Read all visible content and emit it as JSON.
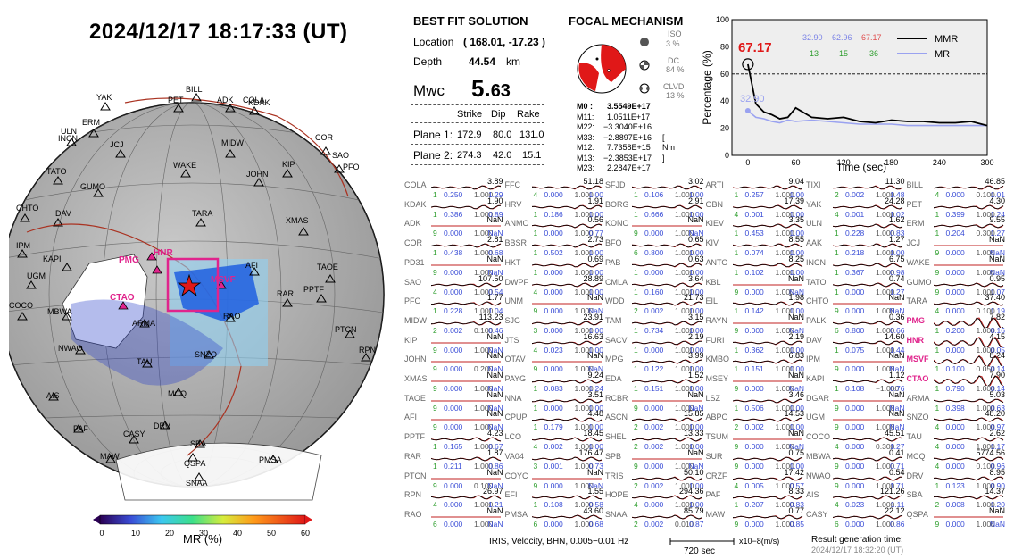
{
  "title": "2024/12/17  18:17:33 (UT)",
  "best_fit": {
    "heading": "BEST FIT SOLUTION",
    "location_label": "Location",
    "location_value": "( 168.01,  -17.23 )",
    "depth_label": "Depth",
    "depth_value": "44.54",
    "depth_unit": "km",
    "mw_label": "Mwc",
    "mw_value_big": "5.",
    "mw_value_small": "63",
    "col_strike": "Strike",
    "col_dip": "Dip",
    "col_rake": "Rake",
    "plane1_label": "Plane 1:",
    "plane1": [
      "172.9",
      "80.0",
      "131.0"
    ],
    "plane2_label": "Plane 2:",
    "plane2": [
      "274.3",
      "42.0",
      "15.1"
    ]
  },
  "focal": {
    "heading": "FOCAL MECHANISM",
    "iso_label": "ISO",
    "iso_value": "3 %",
    "dc_label": "DC",
    "dc_value": "84 %",
    "clvd_label": "CLVD",
    "clvd_value": "13 %",
    "moment_rows": [
      {
        "k": "M0  :",
        "v": "3.5549E+17"
      },
      {
        "k": "M11:",
        "v": "1.0511E+17"
      },
      {
        "k": "M22:",
        "v": "−3.3040E+16"
      },
      {
        "k": "M33:",
        "v": "−2.8897E+16"
      },
      {
        "k": "M12:",
        "v": "7.7358E+15"
      },
      {
        "k": "M13:",
        "v": "−2.3853E+17"
      },
      {
        "k": "M23:",
        "v": "2.2847E+17"
      }
    ],
    "unit": "[ Nm ]"
  },
  "mr_chart": {
    "ylabel": "Percentage (%)",
    "xlabel": "Time (sec)",
    "yticks": [
      "0",
      "20",
      "40",
      "60",
      "80",
      "100"
    ],
    "xticks": [
      "0",
      "60",
      "120",
      "180",
      "240",
      "300"
    ],
    "big_value": "67.17",
    "blue_marker": "32.90",
    "top_vals": [
      "32.90",
      "62.96",
      "67.17"
    ],
    "bottom_vals": [
      "13",
      "15",
      "36"
    ],
    "legend": [
      "MMR",
      "MR"
    ]
  },
  "chart_data": {
    "type": "line",
    "x": [
      0,
      10,
      20,
      30,
      40,
      50,
      60,
      80,
      100,
      120,
      140,
      160,
      180,
      200,
      220,
      240,
      260,
      280,
      300
    ],
    "series": [
      {
        "name": "MMR",
        "values": [
          67.17,
          38,
          32,
          30,
          27,
          28,
          35,
          28,
          27,
          28,
          25,
          24,
          26,
          25,
          25,
          24,
          24,
          25,
          22
        ]
      },
      {
        "name": "MR",
        "values": [
          32.9,
          28,
          27,
          25,
          24,
          26,
          25,
          26,
          25,
          24,
          23,
          23,
          23,
          22,
          22,
          22,
          22,
          22,
          22
        ]
      }
    ],
    "xlabel": "Time (sec)",
    "ylabel": "Percentage (%)",
    "xlim": [
      -20,
      300
    ],
    "ylim": [
      0,
      100
    ]
  },
  "colorbar": {
    "ticks": [
      "0",
      "10",
      "20",
      "30",
      "40",
      "50",
      "60"
    ],
    "label": "MR (%)"
  },
  "globe_labels": {
    "stations": [
      "YAK",
      "BILL",
      "PET",
      "ADK",
      "COLA",
      "KDAK",
      "ULN",
      "INCN",
      "ERM",
      "JCJ",
      "MIDW",
      "COR",
      "SAO",
      "PFO",
      "TATO",
      "WAKE",
      "JOHN",
      "KIP",
      "GUMO",
      "CHTO",
      "DAV",
      "TARA",
      "XMAS",
      "IPM",
      "KAPI",
      "UGM",
      "AFI",
      "TAOE",
      "PPTF",
      "RAR",
      "COCO",
      "MBWA",
      "ARMA",
      "RAO",
      "PTCN",
      "NWAO",
      "TAU",
      "SNZO",
      "RPN",
      "AIS",
      "MCQ",
      "PAF",
      "CASY",
      "DRV",
      "SBA",
      "MAW",
      "QSPA",
      "PMSA",
      "SNAA"
    ],
    "pink": [
      "PMG",
      "HNR",
      "CTAO",
      "MSVF"
    ]
  },
  "footer": {
    "source": "IRIS, Velocity,  BHN, 0.005−0.01 Hz",
    "scale_time": "720 sec",
    "scale_unit": "x10−8(m/s)",
    "result_label": "Result generation time:",
    "result_time": "2024/12/17 18:32:20 (UT)"
  },
  "waveforms": [
    [
      "COLA",
      "3.89",
      "1",
      "0.250",
      "1.000",
      "1.29"
    ],
    [
      "FFC",
      "51.18",
      "4",
      "0.000",
      "1.000",
      "1.00"
    ],
    [
      "SFJD",
      "3.02",
      "1",
      "0.106",
      "1.000",
      "1.00"
    ],
    [
      "ARTI",
      "9.04",
      "1",
      "0.257",
      "1.000",
      "1.00"
    ],
    [
      "TIXI",
      "11.30",
      "2",
      "0.002",
      "1.000",
      "1.48"
    ],
    [
      "BILL",
      "46.85",
      "4",
      "0.000",
      "0.100",
      "1.01"
    ],
    [
      "KDAK",
      "1.90",
      "1",
      "0.386",
      "1.000",
      "0.89"
    ],
    [
      "HRV",
      "1.91",
      "1",
      "0.186",
      "1.000",
      "1.00"
    ],
    [
      "BORG",
      "2.91",
      "1",
      "0.666",
      "1.000",
      "1.00"
    ],
    [
      "OBN",
      "17.39",
      "4",
      "0.001",
      "1.000",
      "1.00"
    ],
    [
      "YAK",
      "24.28",
      "4",
      "0.001",
      "1.000",
      "1.02"
    ],
    [
      "PET",
      "4.30",
      "1",
      "0.399",
      "1.000",
      "1.24"
    ],
    [
      "ADK",
      "NaN",
      "9",
      "0.000",
      "1.000",
      "NaN"
    ],
    [
      "ANMO",
      "0.56",
      "1",
      "0.000",
      "1.000",
      "0.77"
    ],
    [
      "KONO",
      "NaN",
      "9",
      "0.000",
      "1.000",
      "NaN"
    ],
    [
      "KIEV",
      "3.35",
      "1",
      "0.453",
      "1.000",
      "1.00"
    ],
    [
      "ULN",
      "1.62",
      "1",
      "0.228",
      "1.000",
      "0.83"
    ],
    [
      "ERM",
      "9.55",
      "1",
      "0.204",
      "0.300",
      "1.27"
    ],
    [
      "COR",
      "2.81",
      "1",
      "0.438",
      "1.000",
      "0.68"
    ],
    [
      "BBSR",
      "2.73",
      "1",
      "0.502",
      "1.000",
      "1.00"
    ],
    [
      "BFO",
      "0.65",
      "6",
      "0.800",
      "1.000",
      "1.00"
    ],
    [
      "KIV",
      "8.55",
      "1",
      "0.074",
      "1.000",
      "1.00"
    ],
    [
      "AAK",
      "1.27",
      "1",
      "0.218",
      "1.000",
      "1.00"
    ],
    [
      "JCJ",
      "NaN",
      "9",
      "0.000",
      "1.000",
      "NaN"
    ],
    [
      "PD31",
      "NaN",
      "9",
      "0.000",
      "1.000",
      "NaN"
    ],
    [
      "HKT",
      "0.69",
      "1",
      "0.000",
      "1.000",
      "1.00"
    ],
    [
      "PAB",
      "0.63",
      "1",
      "0.000",
      "1.000",
      "1.00"
    ],
    [
      "ANTO",
      "8.25",
      "1",
      "0.102",
      "1.000",
      "1.00"
    ],
    [
      "INCN",
      "6.75",
      "1",
      "0.367",
      "1.000",
      "0.98"
    ],
    [
      "WAKE",
      "NaN",
      "9",
      "0.000",
      "1.000",
      "NaN"
    ],
    [
      "SAO",
      "107.50",
      "4",
      "0.000",
      "1.000",
      "0.54"
    ],
    [
      "DWPF",
      "28.89",
      "4",
      "0.000",
      "1.000",
      "1.00"
    ],
    [
      "CMLA",
      "3.64",
      "1",
      "0.160",
      "1.000",
      "1.00"
    ],
    [
      "KBL",
      "NaN",
      "9",
      "0.000",
      "1.000",
      "NaN"
    ],
    [
      "TATO",
      "0.74",
      "1",
      "0.000",
      "1.000",
      "1.27"
    ],
    [
      "GUMO",
      "0.95",
      "9",
      "0.000",
      "1.000",
      "1.07"
    ],
    [
      "PFO",
      "1.77",
      "1",
      "0.228",
      "1.000",
      "1.04"
    ],
    [
      "UNM",
      "NaN",
      "9",
      "0.000",
      "1.000",
      "NaN"
    ],
    [
      "WDD",
      "21.73",
      "2",
      "0.002",
      "1.000",
      "1.00"
    ],
    [
      "EIL",
      "1.98",
      "1",
      "0.142",
      "1.000",
      "1.00"
    ],
    [
      "CHTO",
      "NaN",
      "9",
      "0.000",
      "1.000",
      "NaN"
    ],
    [
      "TARA",
      "37.40",
      "4",
      "0.000",
      "0.100",
      "1.19"
    ],
    [
      "MIDW",
      "113.23",
      "2",
      "0.002",
      "0.100",
      "0.46"
    ],
    [
      "SJG",
      "23.91",
      "3",
      "0.000",
      "1.000",
      "1.00"
    ],
    [
      "TAM",
      "3.15",
      "1",
      "0.734",
      "1.000",
      "1.00"
    ],
    [
      "RAYN",
      "NaN",
      "9",
      "0.000",
      "1.000",
      "NaN"
    ],
    [
      "PALK",
      "0.36",
      "6",
      "0.800",
      "1.000",
      "0.66"
    ],
    [
      "PMG",
      "7.82",
      "1",
      "0.200",
      "1.000",
      "0.16"
    ],
    [
      "KIP",
      "NaN",
      "9",
      "0.000",
      "1.000",
      "NaN"
    ],
    [
      "JTS",
      "16.63",
      "4",
      "0.023",
      "1.000",
      "1.00"
    ],
    [
      "SACV",
      "2.19",
      "1",
      "0.000",
      "1.000",
      "1.00"
    ],
    [
      "FURI",
      "2.19",
      "1",
      "0.362",
      "1.000",
      "1.00"
    ],
    [
      "DAV",
      "14.60",
      "1",
      "0.075",
      "1.000",
      "1.44"
    ],
    [
      "HNR",
      "4.15",
      "1",
      "0.000",
      "1.000",
      "0.05"
    ],
    [
      "JOHN",
      "NaN",
      "9",
      "0.000",
      "0.200",
      "NaN"
    ],
    [
      "OTAV",
      "NaN",
      "9",
      "0.000",
      "1.000",
      "NaN"
    ],
    [
      "MPG",
      "3.99",
      "1",
      "0.122",
      "1.000",
      "1.00"
    ],
    [
      "KMBO",
      "6.83",
      "1",
      "0.151",
      "1.000",
      "1.00"
    ],
    [
      "IPM",
      "NaN",
      "9",
      "0.000",
      "1.000",
      "NaN"
    ],
    [
      "MSVF",
      "8.24",
      "1",
      "0.100",
      "0.050",
      "0.14"
    ],
    [
      "XMAS",
      "NaN",
      "9",
      "0.000",
      "1.000",
      "NaN"
    ],
    [
      "PAYG",
      "9.24",
      "1",
      "0.083",
      "1.000",
      "1.24"
    ],
    [
      "EDA",
      "1.52",
      "1",
      "0.151",
      "1.000",
      "1.00"
    ],
    [
      "MSEY",
      "NaN",
      "9",
      "0.000",
      "1.000",
      "NaN"
    ],
    [
      "KAPI",
      "1.12",
      "1",
      "0.108",
      "−1.000",
      "0.76"
    ],
    [
      "CTAO",
      "7.90",
      "1",
      "0.790",
      "1.000",
      "0.14"
    ],
    [
      "TAOE",
      "NaN",
      "9",
      "0.000",
      "1.000",
      "NaN"
    ],
    [
      "NNA",
      "3.51",
      "1",
      "0.000",
      "1.000",
      "1.00"
    ],
    [
      "RCBR",
      "NaN",
      "9",
      "0.000",
      "1.000",
      "NaN"
    ],
    [
      "LSZ",
      "3.46",
      "1",
      "0.506",
      "1.000",
      "1.00"
    ],
    [
      "DGAR",
      "NaN",
      "9",
      "0.000",
      "1.000",
      "NaN"
    ],
    [
      "ARMA",
      "5.03",
      "1",
      "0.398",
      "1.000",
      "0.63"
    ],
    [
      "AFI",
      "NaN",
      "9",
      "0.000",
      "1.000",
      "NaN"
    ],
    [
      "CPUP",
      "4.48",
      "1",
      "0.179",
      "1.000",
      "1.00"
    ],
    [
      "ASCN",
      "15.85",
      "2",
      "0.002",
      "1.000",
      "1.00"
    ],
    [
      "ABPO",
      "14.53",
      "2",
      "0.002",
      "1.000",
      "1.00"
    ],
    [
      "UGM",
      "NaN",
      "9",
      "0.000",
      "1.000",
      "NaN"
    ],
    [
      "SNZO",
      "48.20",
      "4",
      "0.000",
      "1.000",
      "0.97"
    ],
    [
      "PPTF",
      "4.23",
      "1",
      "0.165",
      "1.000",
      "0.67"
    ],
    [
      "LCO",
      "18.45",
      "4",
      "0.002",
      "1.000",
      "1.00"
    ],
    [
      "SHEL",
      "13.33",
      "2",
      "0.002",
      "1.000",
      "1.00"
    ],
    [
      "TSUM",
      "NaN",
      "9",
      "0.000",
      "1.000",
      "NaN"
    ],
    [
      "COCO",
      "45.51",
      "4",
      "0.000",
      "0.300",
      "1.27"
    ],
    [
      "TAU",
      "2.62",
      "4",
      "0.000",
      "1.000",
      "1.17"
    ],
    [
      "RAR",
      "1.87",
      "1",
      "0.211",
      "1.000",
      "0.86"
    ],
    [
      "VA04",
      "176.47",
      "3",
      "0.001",
      "1.000",
      "0.73"
    ],
    [
      "SPB",
      "NaN",
      "9",
      "0.000",
      "1.000",
      "NaN"
    ],
    [
      "SUR",
      "0.75",
      "9",
      "0.000",
      "1.000",
      "1.00"
    ],
    [
      "MBWA",
      "0.41",
      "9",
      "0.000",
      "1.000",
      "0.71"
    ],
    [
      "MCQ",
      "5774.56",
      "4",
      "0.000",
      "0.100",
      "0.96"
    ],
    [
      "PTCN",
      "NaN",
      "9",
      "0.000",
      "0.100",
      "NaN"
    ],
    [
      "COYC",
      "NaN",
      "9",
      "0.000",
      "1.000",
      "NaN"
    ],
    [
      "TRIS",
      "50.10",
      "2",
      "0.002",
      "1.000",
      "1.00"
    ],
    [
      "CRZF",
      "17.42",
      "4",
      "0.005",
      "1.000",
      "0.57"
    ],
    [
      "NWAO",
      "0.54",
      "9",
      "0.000",
      "1.000",
      "1.71"
    ],
    [
      "DRV",
      "8.95",
      "1",
      "0.123",
      "1.000",
      "0.90"
    ],
    [
      "RPN",
      "26.97",
      "4",
      "0.000",
      "1.000",
      "1.21"
    ],
    [
      "EFI",
      "1.55",
      "1",
      "0.108",
      "1.000",
      "0.58"
    ],
    [
      "HOPE",
      "294.36",
      "4",
      "0.000",
      "1.000",
      "1.00"
    ],
    [
      "PAF",
      "8.33",
      "1",
      "0.207",
      "1.000",
      "0.83"
    ],
    [
      "AIS",
      "121.26",
      "4",
      "0.023",
      "1.000",
      "1.11"
    ],
    [
      "SBA",
      "14.37",
      "2",
      "0.008",
      "1.000",
      "1.20"
    ],
    [
      "RAO",
      "NaN",
      "6",
      "0.000",
      "1.000",
      "NaN"
    ],
    [
      "PMSA",
      "43.60",
      "6",
      "0.000",
      "1.000",
      "0.68"
    ],
    [
      "SNAA",
      "85.79",
      "2",
      "0.002",
      "0.010",
      "0.87"
    ],
    [
      "MAW",
      "0.77",
      "9",
      "0.000",
      "1.000",
      "0.85"
    ],
    [
      "CASY",
      "22.12",
      "6",
      "0.000",
      "1.000",
      "0.86"
    ],
    [
      "QSPA",
      "NaN",
      "9",
      "0.000",
      "1.000",
      "NaN"
    ]
  ]
}
